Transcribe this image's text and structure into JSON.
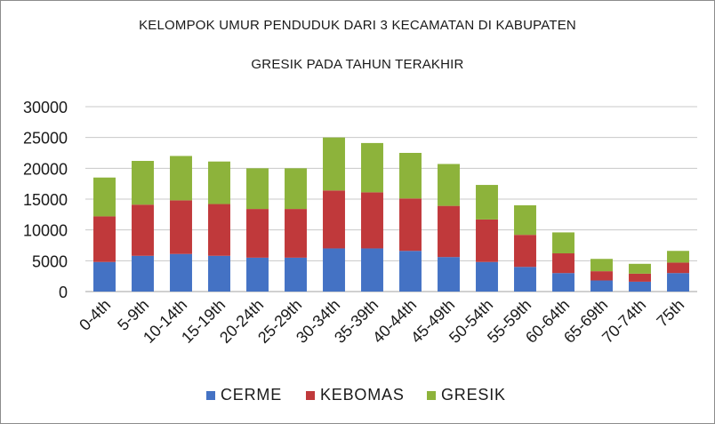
{
  "chart_data": {
    "type": "bar",
    "stacked": true,
    "title_line1": "KELOMPOK UMUR PENDUDUK DARI 3 KECAMATAN DI KABUPATEN",
    "title_line2": "GRESIK PADA TAHUN TERAKHIR",
    "xlabel": "",
    "ylabel": "",
    "ylim": [
      0,
      30000
    ],
    "yticks": [
      0,
      5000,
      10000,
      15000,
      20000,
      25000,
      30000
    ],
    "grid": true,
    "legend_position": "bottom",
    "categories": [
      "0-4th",
      "5-9th",
      "10-14th",
      "15-19th",
      "20-24th",
      "25-29th",
      "30-34th",
      "35-39th",
      "40-44th",
      "45-49th",
      "50-54th",
      "55-59th",
      "60-64th",
      "65-69th",
      "70-74th",
      "75th"
    ],
    "series": [
      {
        "name": "CERME",
        "color": "#4472c4",
        "values": [
          4800,
          5800,
          6100,
          5800,
          5500,
          5500,
          7000,
          7000,
          6600,
          5600,
          4800,
          4000,
          3000,
          1800,
          1600,
          3000
        ]
      },
      {
        "name": "KEBOMAS",
        "color": "#c0393b",
        "values": [
          7400,
          8300,
          8700,
          8400,
          7900,
          7900,
          9400,
          9100,
          8500,
          8300,
          6900,
          5200,
          3200,
          1500,
          1300,
          1700
        ]
      },
      {
        "name": "GRESIK",
        "color": "#8db33b",
        "values": [
          6300,
          7100,
          7200,
          6900,
          6600,
          6600,
          8600,
          8000,
          7400,
          6800,
          5600,
          4800,
          3400,
          2000,
          1600,
          1900
        ]
      }
    ]
  }
}
